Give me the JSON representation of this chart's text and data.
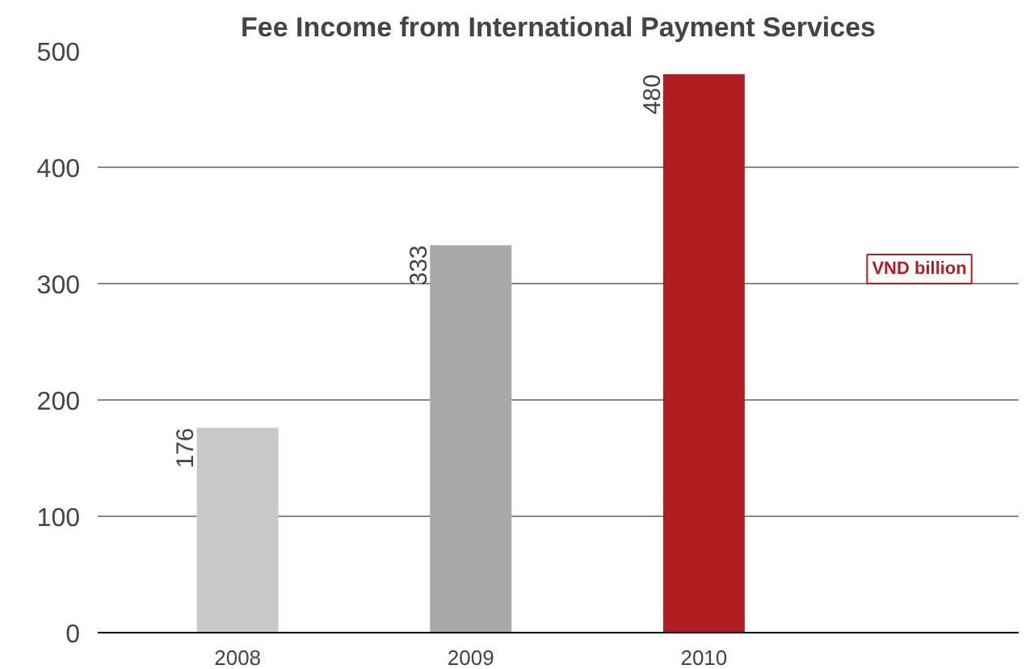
{
  "chart_data": {
    "type": "bar",
    "title": "Fee Income from International Payment Services",
    "categories": [
      "2008",
      "2009",
      "2010"
    ],
    "values": [
      176,
      333,
      480
    ],
    "colors": [
      "#c8c8c8",
      "#a9a9a9",
      "#b01e23"
    ],
    "ylim": [
      0,
      500
    ],
    "yticks": [
      0,
      100,
      200,
      300,
      400,
      500
    ],
    "grid": "y",
    "data_labels": true,
    "annotations": [
      "VND billion"
    ]
  }
}
